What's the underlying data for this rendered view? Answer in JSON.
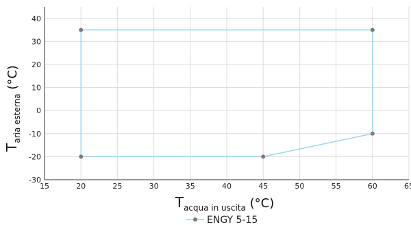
{
  "chart_data": {
    "type": "line",
    "xlabel": {
      "main": "T",
      "sub": "acqua in uscita",
      "unit": " (°C)"
    },
    "ylabel": {
      "main": "T",
      "sub": "aria esterna",
      "unit": " (°C)"
    },
    "xlim": [
      15,
      65
    ],
    "ylim": [
      -30,
      45
    ],
    "xticks": [
      "15",
      "20",
      "25",
      "30",
      "35",
      "40",
      "45",
      "50",
      "55",
      "60",
      "65"
    ],
    "yticks": [
      "-30",
      "-20",
      "-10",
      "0",
      "10",
      "20",
      "30",
      "40"
    ],
    "grid": true,
    "legend_position": "bottom-center",
    "series": [
      {
        "name": "ENGY 5-15",
        "color": "#9fd4ea",
        "marker_color": "#7a7a7a",
        "points": [
          {
            "x": 20,
            "y": 35
          },
          {
            "x": 60,
            "y": 35
          },
          {
            "x": 60,
            "y": -10
          },
          {
            "x": 45,
            "y": -20
          },
          {
            "x": 20,
            "y": -20
          },
          {
            "x": 20,
            "y": 35
          }
        ]
      }
    ]
  }
}
